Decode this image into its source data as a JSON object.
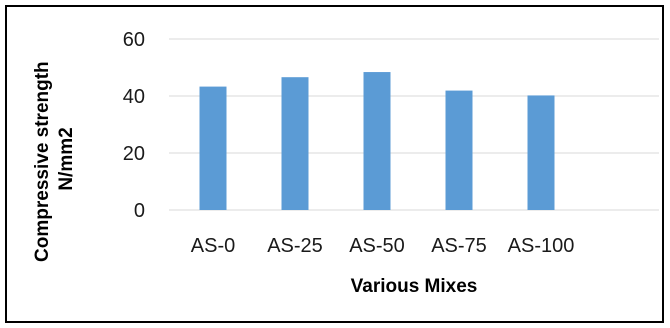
{
  "chart_data": {
    "type": "bar",
    "title": "",
    "xlabel": "Various Mixes",
    "ylabel_lines": [
      "Compressive strength",
      "N/mm2"
    ],
    "categories": [
      "AS-0",
      "AS-25",
      "AS-50",
      "AS-75",
      "AS-100"
    ],
    "series": [
      {
        "values": [
          43.3,
          46.6,
          48.4,
          41.9,
          40.2
        ]
      }
    ],
    "ylim": [
      0,
      60
    ],
    "yticks": [
      "0",
      "20",
      "40",
      "60"
    ],
    "grid": true,
    "legend": "none",
    "colors": {
      "bar": "#5b9bd5",
      "grid": "#d9d9d9",
      "border": "#000000"
    }
  }
}
